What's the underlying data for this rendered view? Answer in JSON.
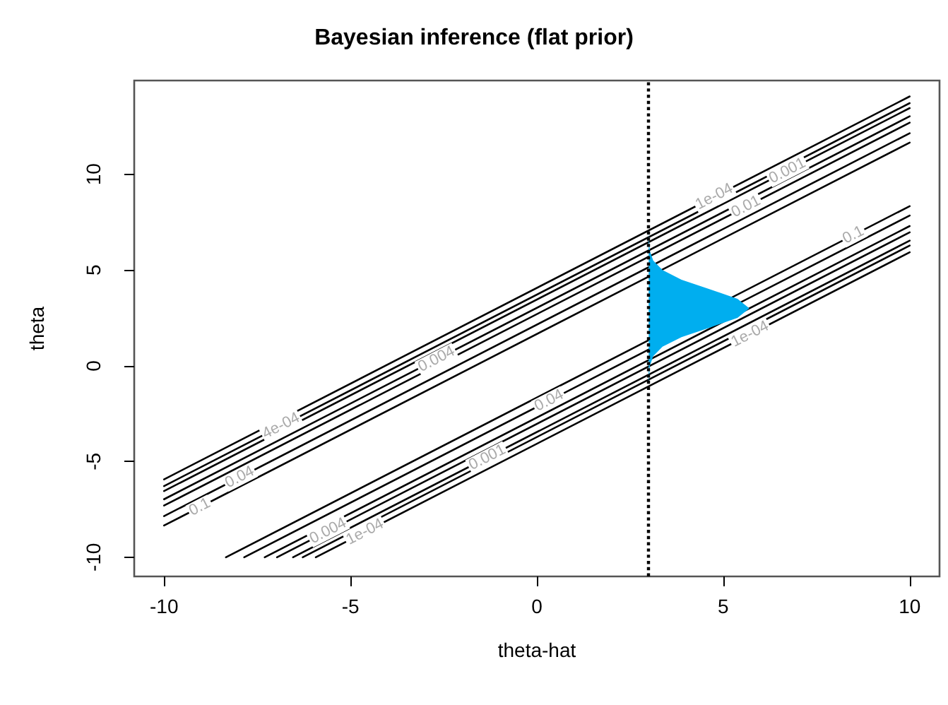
{
  "chart_data": {
    "type": "line",
    "title": "Bayesian inference (flat prior)",
    "xlabel": "theta-hat",
    "ylabel": "theta",
    "xlim": [
      -10.8,
      10.8
    ],
    "ylim": [
      -11,
      14.9
    ],
    "xticks": [
      -10,
      -5,
      0,
      5,
      10
    ],
    "yticks": [
      -10,
      -5,
      0,
      5,
      10
    ],
    "grid": false,
    "line_style": "solid",
    "marker": "none",
    "series": [
      {
        "color": "#000000",
        "x": [
          -10,
          10
        ],
        "values": [
          -8.34,
          11.66
        ]
      },
      {
        "color": "#000000",
        "x": [
          -10,
          10
        ],
        "values": [
          -7.85,
          12.15
        ]
      },
      {
        "color": "#000000",
        "x": [
          -10,
          10
        ],
        "values": [
          -7.3,
          12.7
        ]
      },
      {
        "color": "#000000",
        "x": [
          -10,
          10
        ],
        "values": [
          -6.97,
          13.03
        ]
      },
      {
        "color": "#000000",
        "x": [
          -10,
          10
        ],
        "values": [
          -6.54,
          13.46
        ]
      },
      {
        "color": "#000000",
        "x": [
          -10,
          10
        ],
        "values": [
          -6.28,
          13.72
        ]
      },
      {
        "color": "#000000",
        "x": [
          -10,
          10
        ],
        "values": [
          -5.93,
          14.07
        ]
      },
      {
        "color": "#000000",
        "x": [
          -8.34,
          10
        ],
        "values": [
          -10,
          8.34
        ]
      },
      {
        "color": "#000000",
        "x": [
          -7.85,
          10
        ],
        "values": [
          -10,
          7.85
        ]
      },
      {
        "color": "#000000",
        "x": [
          -7.3,
          10
        ],
        "values": [
          -10,
          7.3
        ]
      },
      {
        "color": "#000000",
        "x": [
          -6.97,
          10
        ],
        "values": [
          -10,
          6.97
        ]
      },
      {
        "color": "#000000",
        "x": [
          -6.54,
          10
        ],
        "values": [
          -10,
          6.54
        ]
      },
      {
        "color": "#000000",
        "x": [
          -6.28,
          10
        ],
        "values": [
          -10,
          6.28
        ]
      },
      {
        "color": "#000000",
        "x": [
          -5.93,
          10
        ],
        "values": [
          -10,
          5.93
        ]
      },
      {
        "type": "area",
        "color": "#00aeef",
        "x": [
          3.0,
          3.0,
          3.03,
          3.12,
          3.37,
          3.88,
          4.64,
          5.38,
          5.7,
          5.38,
          4.64,
          3.88,
          3.37,
          3.12,
          3.03,
          3.01,
          3.0,
          3.0
        ],
        "values": [
          -1.3,
          -1,
          0,
          0.5,
          1,
          1.5,
          2,
          2.5,
          3,
          3.5,
          4,
          4.5,
          5,
          5.5,
          6,
          6.5,
          7,
          7.3
        ]
      }
    ],
    "ref_lines": [
      {
        "axis": "x",
        "value": 3,
        "color": "#000000",
        "line_style": "dotted"
      }
    ],
    "annotations": [
      {
        "text": "1e-04",
        "x": 4.76,
        "y": 8.83
      },
      {
        "text": "0.001",
        "x": 6.72,
        "y": 10.18
      },
      {
        "text": "0.01",
        "x": 5.61,
        "y": 8.31
      },
      {
        "text": "4e-04",
        "x": -6.86,
        "y": -3.14
      },
      {
        "text": "0.004",
        "x": -2.69,
        "y": 0.34
      },
      {
        "text": "0.04",
        "x": -7.97,
        "y": -5.82
      },
      {
        "text": "0.1",
        "x": -9.04,
        "y": -7.38
      },
      {
        "text": "0.1",
        "x": 8.49,
        "y": 6.83
      },
      {
        "text": "1e-04",
        "x": 5.72,
        "y": 1.65
      },
      {
        "text": "0.004",
        "x": -5.6,
        "y": -8.63
      },
      {
        "text": "1e-04",
        "x": -4.61,
        "y": -8.68
      },
      {
        "text": "0.001",
        "x": -1.33,
        "y": -4.79
      },
      {
        "text": "0.04",
        "x": 0.33,
        "y": -1.82
      }
    ]
  }
}
